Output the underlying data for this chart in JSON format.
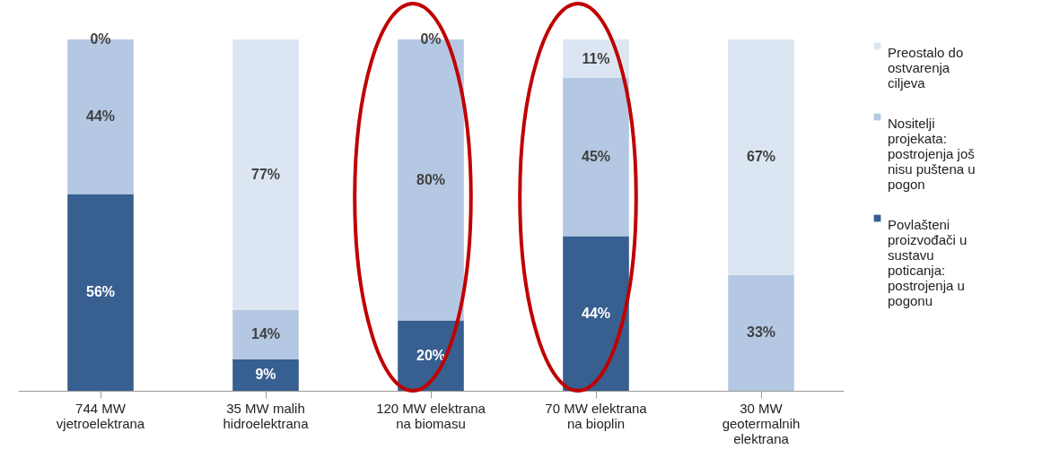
{
  "chart_data": {
    "type": "bar",
    "stacked": true,
    "legend": "right",
    "tick_labels": "x",
    "ylim": [
      0,
      100
    ],
    "categories": [
      "744 MW vjetroelektrana",
      "35 MW malih hidroelektrana",
      "120 MW elektrana na biomasu",
      "70 MW elektrana na bioplin",
      "30 MW geotermalnih elektrana"
    ],
    "series": [
      {
        "name": "Povlašteni proizvođači u sustavu poticanja: postrojenja u pogonu",
        "color": "#375f8f",
        "values": [
          56,
          9,
          20,
          44,
          0
        ],
        "value_labels": [
          "56%",
          "9%",
          "20%",
          "44%",
          null
        ]
      },
      {
        "name": "Nositelji projekata: postrojenja još nisu puštena u pogon",
        "color": "#b4c8e3",
        "values": [
          44,
          14,
          80,
          45,
          33
        ],
        "value_labels": [
          "44%",
          "14%",
          "80%",
          "45%",
          "33%"
        ]
      },
      {
        "name": "Preostalo do ostvarenja ciljeva",
        "color": "#dce6f2",
        "values": [
          0,
          77,
          0,
          11,
          67
        ],
        "value_labels": [
          "0%",
          "77%",
          "0%",
          "11%",
          "67%"
        ]
      }
    ]
  }
}
